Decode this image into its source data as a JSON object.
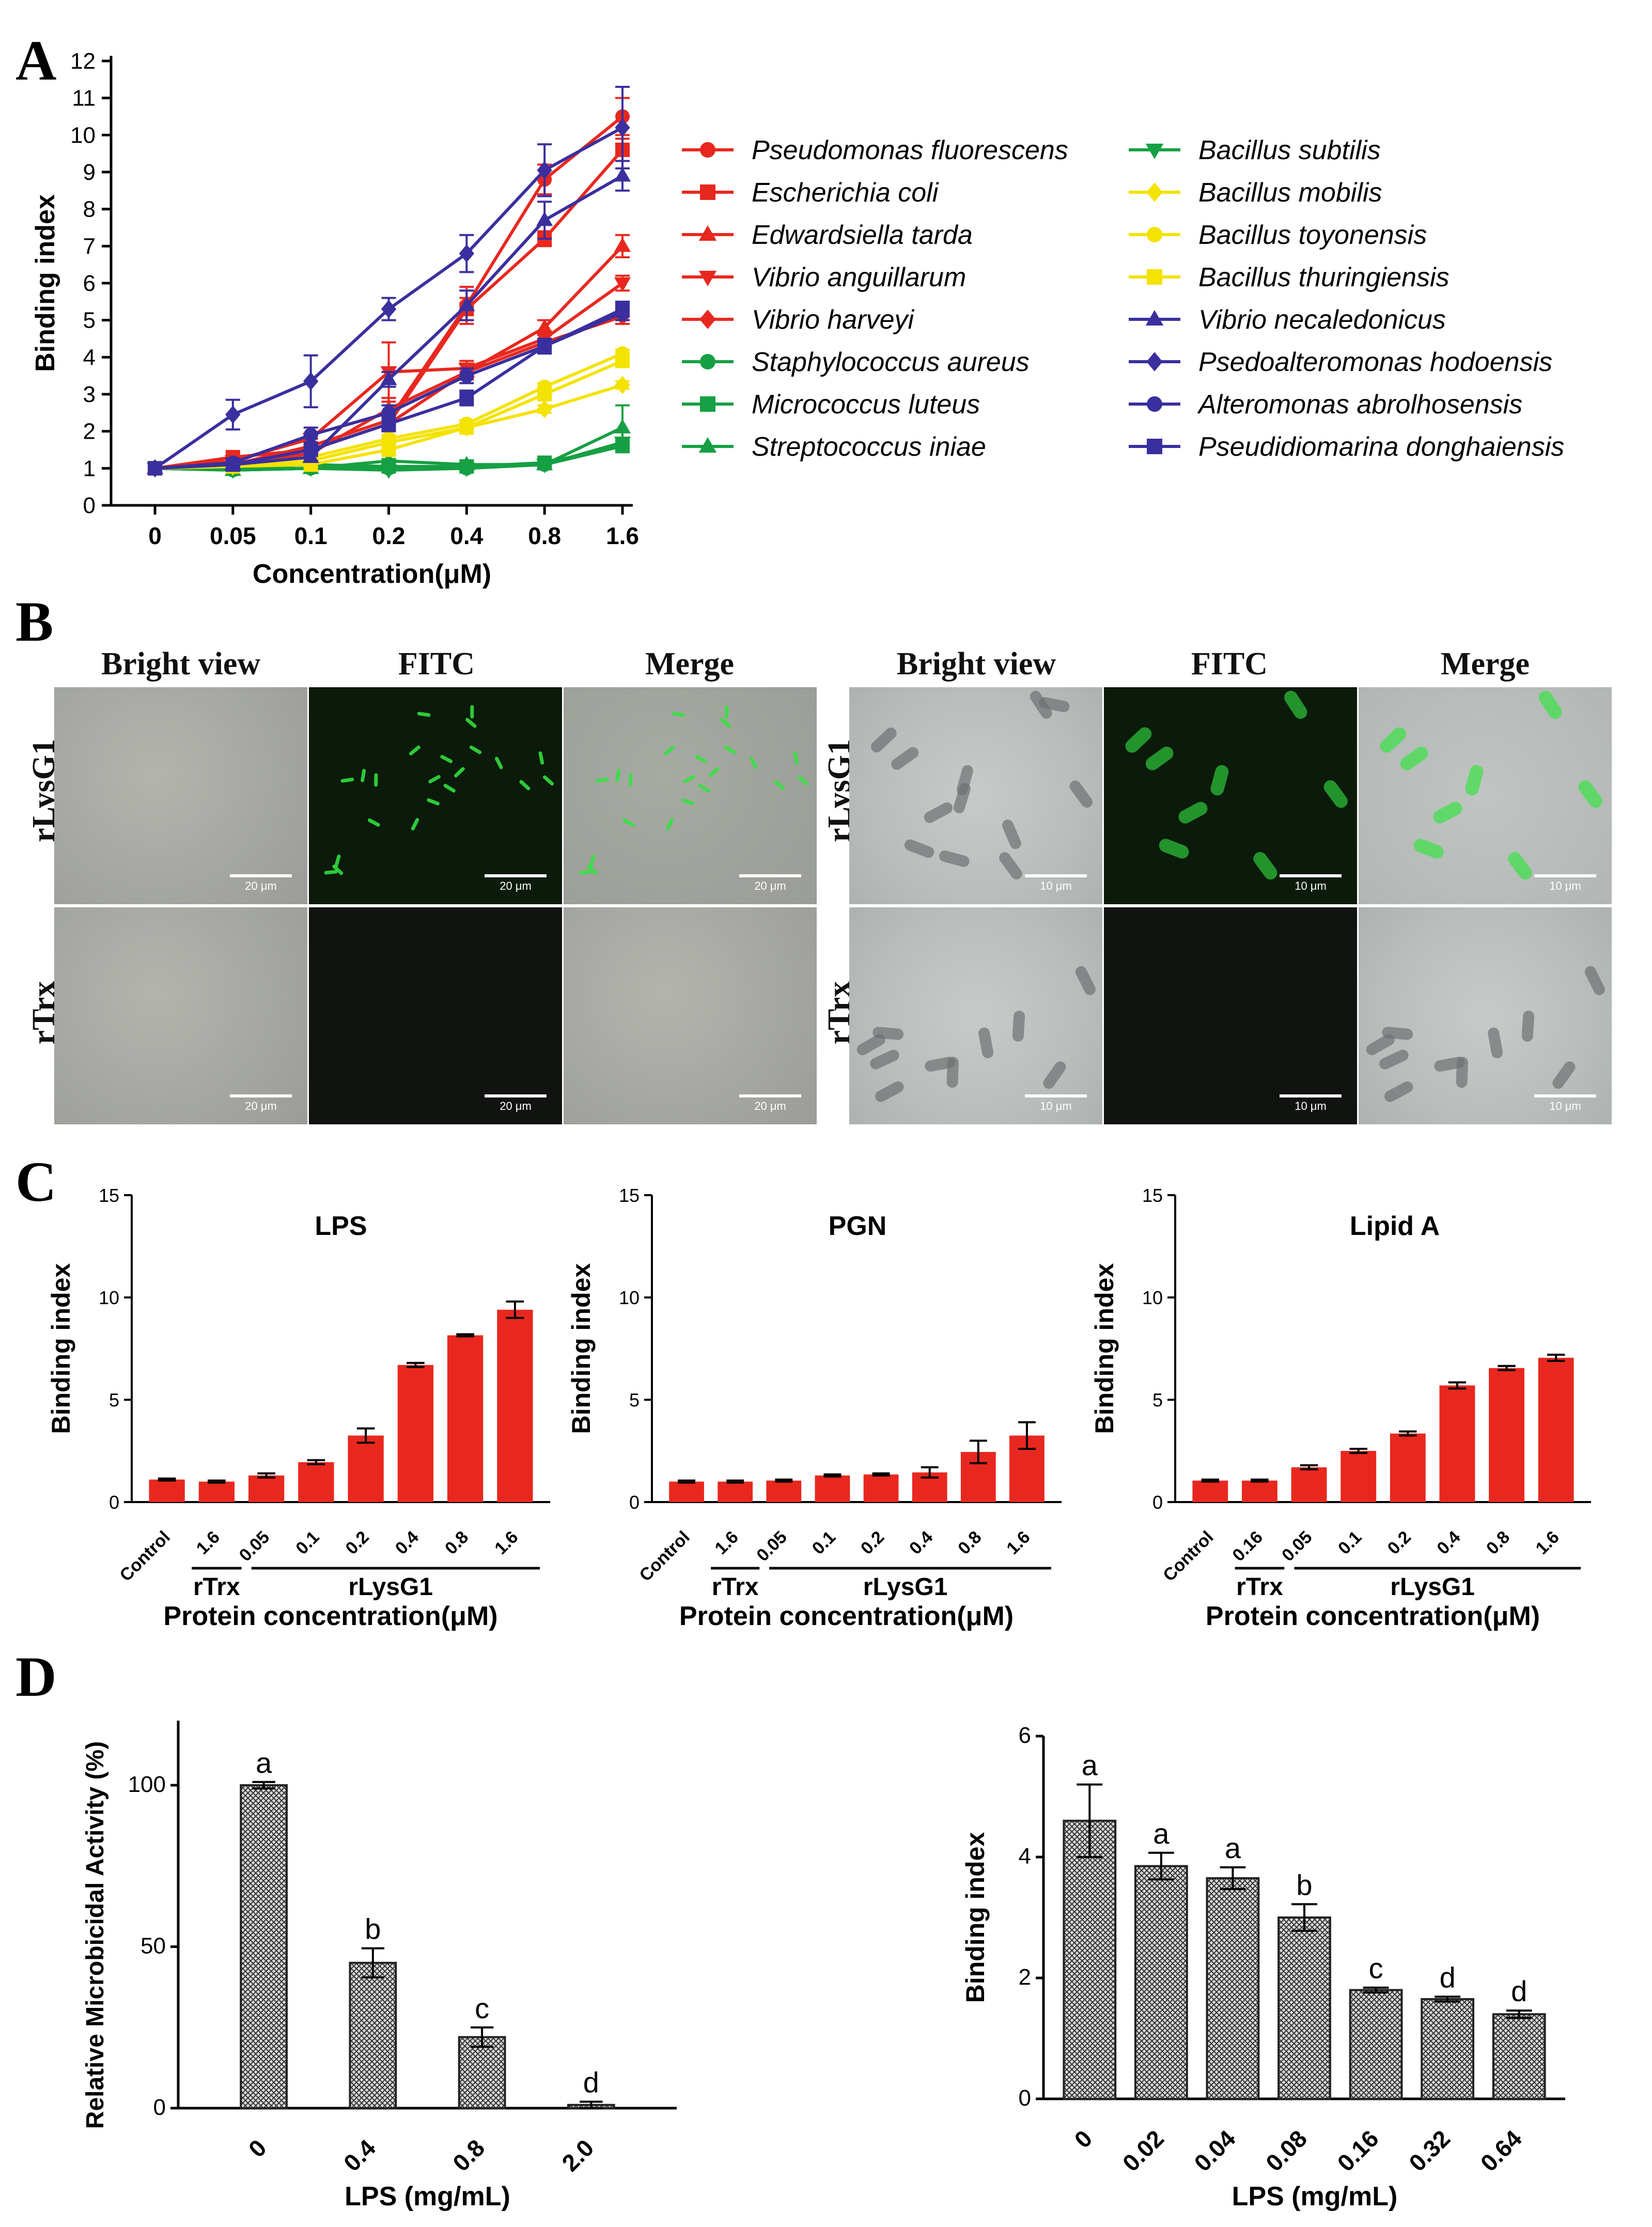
{
  "panels": {
    "a": "A",
    "b": "B",
    "c": "C",
    "d": "D"
  },
  "colors": {
    "red": "#e8281f",
    "green": "#16a043",
    "yellow": "#f4e200",
    "blue": "#3a2f9e",
    "bar_red": "#e8281f",
    "bar_hatch": "#333333"
  },
  "chart_data": [
    {
      "id": "A",
      "type": "line",
      "xlabel": "Concentration(μM)",
      "ylabel": "Binding index",
      "categories": [
        "0",
        "0.05",
        "0.1",
        "0.2",
        "0.4",
        "0.8",
        "1.6"
      ],
      "ylim": [
        0,
        12
      ],
      "yticks": [
        "0",
        "1",
        "2",
        "3",
        "4",
        "5",
        "6",
        "7",
        "8",
        "9",
        "10",
        "11",
        "12"
      ],
      "series": [
        {
          "name": "Pseudomonas fluorescens",
          "color": "red",
          "marker": "circle",
          "values": [
            1.0,
            1.1,
            1.6,
            2.3,
            5.4,
            8.8,
            10.5
          ],
          "err": [
            0.1,
            0.1,
            0.2,
            0.2,
            0.5,
            0.4,
            0.5
          ]
        },
        {
          "name": "Escherichia coli",
          "color": "red",
          "marker": "square",
          "values": [
            1.0,
            1.3,
            1.5,
            2.2,
            5.3,
            7.2,
            9.6
          ],
          "err": [
            0.1,
            0.1,
            0.1,
            0.2,
            0.3,
            0.2,
            0.3
          ]
        },
        {
          "name": "Edwardsiella tarda",
          "color": "red",
          "marker": "triangle-up",
          "values": [
            1.0,
            1.1,
            1.4,
            2.6,
            3.6,
            4.8,
            7.0
          ],
          "err": [
            0.1,
            0.1,
            0.1,
            0.3,
            0.2,
            0.2,
            0.3
          ]
        },
        {
          "name": "Vibrio anguillarum",
          "color": "red",
          "marker": "triangle-down",
          "values": [
            1.0,
            1.2,
            1.8,
            3.6,
            3.7,
            4.5,
            6.0
          ],
          "err": [
            0.1,
            0.1,
            0.1,
            0.8,
            0.2,
            0.2,
            0.2
          ]
        },
        {
          "name": "Vibrio harveyi",
          "color": "red",
          "marker": "diamond",
          "values": [
            1.0,
            1.1,
            1.5,
            2.2,
            3.6,
            4.4,
            5.1
          ],
          "err": [
            0.1,
            0.1,
            0.1,
            0.2,
            0.2,
            0.2,
            0.2
          ]
        },
        {
          "name": "Staphylococcus aureus",
          "color": "green",
          "marker": "circle",
          "values": [
            1.0,
            0.95,
            1.0,
            1.0,
            1.0,
            1.1,
            1.6
          ],
          "err": [
            0.05,
            0.05,
            0.05,
            0.05,
            0.05,
            0.05,
            0.1
          ]
        },
        {
          "name": "Micrococcus luteus",
          "color": "green",
          "marker": "square",
          "values": [
            1.0,
            1.0,
            1.1,
            1.05,
            1.05,
            1.15,
            1.6
          ],
          "err": [
            0.05,
            0.05,
            0.05,
            0.05,
            0.05,
            0.05,
            0.1
          ]
        },
        {
          "name": "Streptococcus iniae",
          "color": "green",
          "marker": "triangle-up",
          "values": [
            1.0,
            0.95,
            1.0,
            1.2,
            1.1,
            1.1,
            2.1
          ],
          "err": [
            0.05,
            0.05,
            0.05,
            0.05,
            0.05,
            0.05,
            0.6
          ]
        },
        {
          "name": "Bacillus subtilis",
          "color": "green",
          "marker": "triangle-down",
          "values": [
            1.0,
            0.95,
            1.0,
            0.95,
            1.0,
            1.1,
            1.7
          ],
          "err": [
            0.05,
            0.05,
            0.05,
            0.05,
            0.05,
            0.05,
            0.1
          ]
        },
        {
          "name": "Bacillus mobilis",
          "color": "yellow",
          "marker": "diamond",
          "values": [
            1.0,
            1.05,
            1.2,
            1.7,
            2.1,
            2.6,
            3.25
          ],
          "err": [
            0.05,
            0.05,
            0.05,
            0.1,
            0.1,
            0.1,
            0.1
          ]
        },
        {
          "name": "Bacillus toyonensis",
          "color": "yellow",
          "marker": "circle",
          "values": [
            1.0,
            1.1,
            1.3,
            1.8,
            2.2,
            3.2,
            4.1
          ],
          "err": [
            0.05,
            0.05,
            0.05,
            0.1,
            0.1,
            0.1,
            0.1
          ]
        },
        {
          "name": "Bacillus thuringiensis",
          "color": "yellow",
          "marker": "square",
          "values": [
            1.0,
            1.05,
            1.1,
            1.5,
            2.1,
            3.0,
            3.9
          ],
          "err": [
            0.05,
            0.05,
            0.05,
            0.1,
            0.1,
            0.1,
            0.1
          ]
        },
        {
          "name": "Vibrio necaledonicus",
          "color": "blue",
          "marker": "triangle-up",
          "values": [
            1.0,
            1.1,
            1.3,
            3.4,
            5.4,
            7.7,
            8.9
          ],
          "err": [
            0.1,
            0.1,
            0.1,
            0.2,
            0.4,
            0.5,
            0.4
          ]
        },
        {
          "name": "Psedoalteromonas hodoensis",
          "color": "blue",
          "marker": "diamond",
          "values": [
            1.0,
            2.45,
            3.35,
            5.3,
            6.8,
            9.05,
            10.2
          ],
          "err": [
            0.1,
            0.4,
            0.7,
            0.3,
            0.5,
            0.7,
            1.1
          ]
        },
        {
          "name": "Alteromonas abrolhosensis",
          "color": "blue",
          "marker": "circle",
          "values": [
            1.0,
            1.15,
            1.9,
            2.5,
            3.5,
            4.3,
            5.2
          ],
          "err": [
            0.1,
            0.1,
            0.2,
            0.2,
            0.2,
            0.2,
            0.2
          ]
        },
        {
          "name": "Pseudidiomarina donghaiensis",
          "color": "blue",
          "marker": "square",
          "values": [
            1.0,
            1.1,
            1.5,
            2.2,
            2.9,
            4.3,
            5.3
          ],
          "err": [
            0.1,
            0.1,
            0.1,
            0.2,
            0.2,
            0.2,
            0.2
          ]
        }
      ]
    },
    {
      "id": "C-LPS",
      "type": "bar",
      "title": "LPS",
      "ylabel": "Binding index",
      "xlabel": "Protein concentration(μM)",
      "categories": [
        "Control",
        "1.6",
        "0.05",
        "0.1",
        "0.2",
        "0.4",
        "0.8",
        "1.6"
      ],
      "group_labels": {
        "rtrx": "rTrx",
        "rlysg1": "rLysG1"
      },
      "values": [
        1.1,
        1.0,
        1.3,
        1.95,
        3.25,
        6.7,
        8.15,
        9.4
      ],
      "err": [
        0.05,
        0.05,
        0.1,
        0.1,
        0.35,
        0.1,
        0.05,
        0.4
      ],
      "ylim": [
        0,
        15
      ],
      "yticks": [
        "0",
        "5",
        "10",
        "15"
      ]
    },
    {
      "id": "C-PGN",
      "type": "bar",
      "title": "PGN",
      "ylabel": "Binding index",
      "xlabel": "Protein concentration(μM)",
      "categories": [
        "Control",
        "1.6",
        "0.05",
        "0.1",
        "0.2",
        "0.4",
        "0.8",
        "1.6"
      ],
      "group_labels": {
        "rtrx": "rTrx",
        "rlysg1": "rLysG1"
      },
      "values": [
        1.0,
        1.0,
        1.05,
        1.3,
        1.35,
        1.45,
        2.45,
        3.25
      ],
      "err": [
        0.05,
        0.05,
        0.05,
        0.05,
        0.05,
        0.25,
        0.55,
        0.65
      ],
      "ylim": [
        0,
        15
      ],
      "yticks": [
        "0",
        "5",
        "10",
        "15"
      ]
    },
    {
      "id": "C-LipidA",
      "type": "bar",
      "title": "Lipid A",
      "ylabel": "Binding index",
      "xlabel": "Protein concentration(μM)",
      "categories": [
        "Control",
        "0.16",
        "0.05",
        "0.1",
        "0.2",
        "0.4",
        "0.8",
        "1.6"
      ],
      "group_labels": {
        "rtrx": "rTrx",
        "rlysg1": "rLysG1"
      },
      "values": [
        1.05,
        1.05,
        1.7,
        2.5,
        3.35,
        5.7,
        6.55,
        7.05
      ],
      "err": [
        0.05,
        0.05,
        0.1,
        0.1,
        0.1,
        0.15,
        0.1,
        0.15
      ],
      "ylim": [
        0,
        15
      ],
      "yticks": [
        "0",
        "5",
        "10",
        "15"
      ]
    },
    {
      "id": "D-left",
      "type": "bar",
      "ylabel": "Relative Microbicidal Activity (%)",
      "xlabel": "LPS (mg/mL)",
      "categories": [
        "0",
        "0.4",
        "0.8",
        "2.0"
      ],
      "values": [
        100,
        45,
        22,
        1
      ],
      "err": [
        1,
        4.5,
        3,
        1
      ],
      "letters": [
        "a",
        "b",
        "c",
        "d"
      ],
      "ylim": [
        0,
        120
      ],
      "yticks": [
        "0",
        "50",
        "100"
      ]
    },
    {
      "id": "D-right",
      "type": "bar",
      "ylabel": "Binding index",
      "xlabel": "LPS (mg/mL)",
      "categories": [
        "0",
        "0.02",
        "0.04",
        "0.08",
        "0.16",
        "0.32",
        "0.64"
      ],
      "values": [
        4.6,
        3.85,
        3.65,
        3.0,
        1.8,
        1.65,
        1.4
      ],
      "err": [
        0.6,
        0.22,
        0.18,
        0.22,
        0.04,
        0.04,
        0.06
      ],
      "letters": [
        "a",
        "a",
        "a",
        "b",
        "c",
        "d",
        "d"
      ],
      "ylim": [
        0,
        6
      ],
      "yticks": [
        "0",
        "2",
        "4",
        "6"
      ]
    }
  ],
  "micrographs": {
    "columns": [
      "Bright view",
      "FITC",
      "Merge"
    ],
    "rows": [
      "rLysG1",
      "rTrx"
    ],
    "scale_left": "20 μm",
    "scale_right": "10 μm"
  }
}
